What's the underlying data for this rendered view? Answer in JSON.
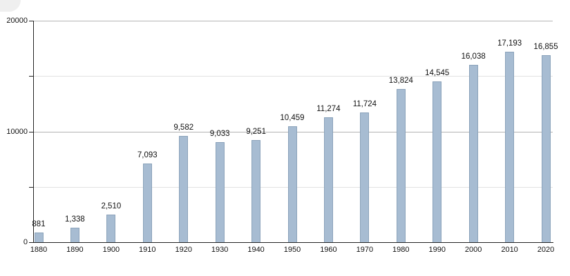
{
  "chart_data": {
    "type": "bar",
    "title": "",
    "xlabel": "",
    "ylabel": "",
    "categories": [
      "1880",
      "1890",
      "1900",
      "1910",
      "1920",
      "1930",
      "1940",
      "1950",
      "1960",
      "1970",
      "1980",
      "1990",
      "2000",
      "2010",
      "2020"
    ],
    "values": [
      881,
      1338,
      2510,
      7093,
      9582,
      9033,
      9251,
      10459,
      11274,
      11724,
      13824,
      14545,
      16038,
      17193,
      16855
    ],
    "value_labels": [
      "881",
      "1,338",
      "2,510",
      "7,093",
      "9,582",
      "9,033",
      "9,251",
      "10,459",
      "11,274",
      "11,724",
      "13,824",
      "14,545",
      "16,038",
      "17,193",
      "16,855"
    ],
    "ylim": [
      0,
      20000
    ],
    "ytick_values": [
      0,
      10000,
      20000
    ],
    "ytick_labels": [
      "0",
      "10000",
      "20000"
    ],
    "minor_gridline_values": [
      5000,
      15000
    ],
    "grid": "on",
    "legend": "none",
    "colors": {
      "bar_fill": "#a7bcd2",
      "bar_border": "#8aa2ba",
      "axis": "#222222",
      "major_gridline": "#b3b3b3",
      "minor_gridline": "#e2e2e2",
      "text": "#111111"
    }
  }
}
